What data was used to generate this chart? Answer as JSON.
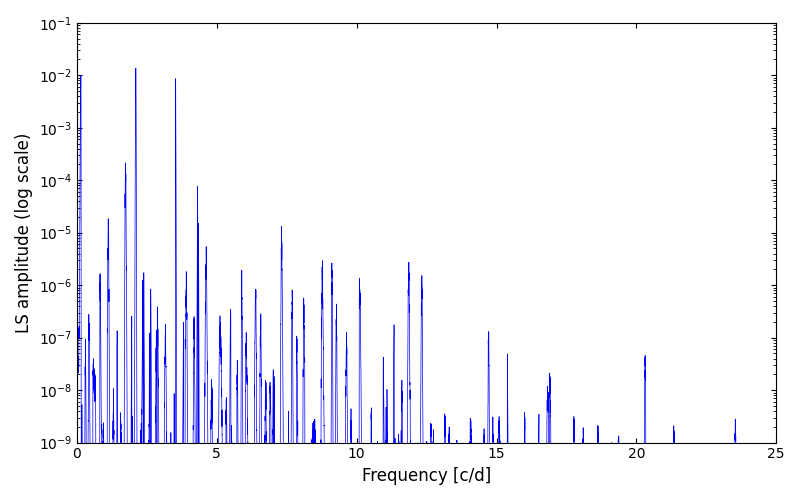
{
  "title": "",
  "xlabel": "Frequency [c/d]",
  "ylabel": "LS amplitude (log scale)",
  "xlim": [
    0,
    25
  ],
  "ylim_log": [
    -9,
    -1
  ],
  "color": "#0000ff",
  "linewidth": 0.5,
  "figsize": [
    8.0,
    5.0
  ],
  "dpi": 100,
  "seed": 42,
  "freq_max": 25.0,
  "background": "#ffffff"
}
